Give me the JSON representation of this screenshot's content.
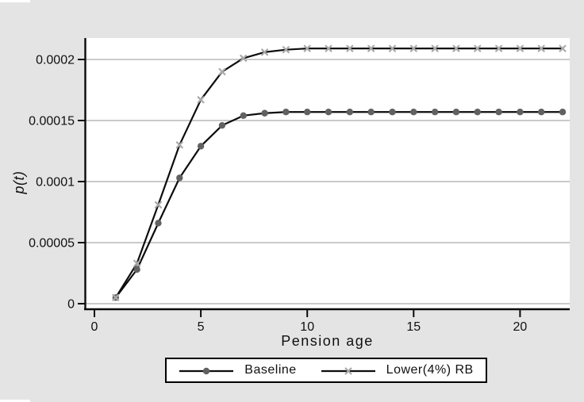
{
  "figure": {
    "background": "#e4e4e4",
    "plot_background": "#ffffff",
    "grid_color": "#c3c3c3",
    "axis_color": "#0a0a0a",
    "text_color": "#101010"
  },
  "chart_data": {
    "type": "line",
    "title": "",
    "xlabel": "Pension age",
    "ylabel": "p(t)",
    "xlim": [
      0,
      22.4
    ],
    "ylim": [
      0,
      0.00022
    ],
    "grid": "horizontal-gridlines",
    "legend_position": "bottom-center",
    "xticks": [
      0,
      5,
      10,
      15,
      20
    ],
    "yticks": [
      {
        "value": 0,
        "label": "0"
      },
      {
        "value": 5e-05,
        "label": "0.00005"
      },
      {
        "value": 0.0001,
        "label": "0.0001"
      },
      {
        "value": 0.00015,
        "label": "0.00015"
      },
      {
        "value": 0.0002,
        "label": "0.0002"
      }
    ],
    "x": [
      1,
      2,
      3,
      4,
      5,
      6,
      7,
      8,
      9,
      10,
      11,
      12,
      13,
      14,
      15,
      16,
      17,
      18,
      19,
      20,
      21,
      22
    ],
    "series": [
      {
        "name": "Baseline",
        "marker": "circle",
        "marker_color": "#616161",
        "line_color": "#0d0d0d",
        "values": [
          5e-06,
          2.8e-05,
          6.6e-05,
          0.000103,
          0.000129,
          0.000146,
          0.000154,
          0.000156,
          0.000157,
          0.000157,
          0.000157,
          0.000157,
          0.000157,
          0.000157,
          0.000157,
          0.000157,
          0.000157,
          0.000157,
          0.000157,
          0.000157,
          0.000157,
          0.000157
        ]
      },
      {
        "name": "Lower(4%) RB",
        "marker": "x",
        "marker_color": "#a9a9a9",
        "line_color": "#0d0d0d",
        "values": [
          5e-06,
          3.3e-05,
          8.1e-05,
          0.00013,
          0.000167,
          0.00019,
          0.000201,
          0.000206,
          0.000208,
          0.000209,
          0.000209,
          0.000209,
          0.000209,
          0.000209,
          0.000209,
          0.000209,
          0.000209,
          0.000209,
          0.000209,
          0.000209,
          0.000209,
          0.000209
        ]
      }
    ]
  }
}
